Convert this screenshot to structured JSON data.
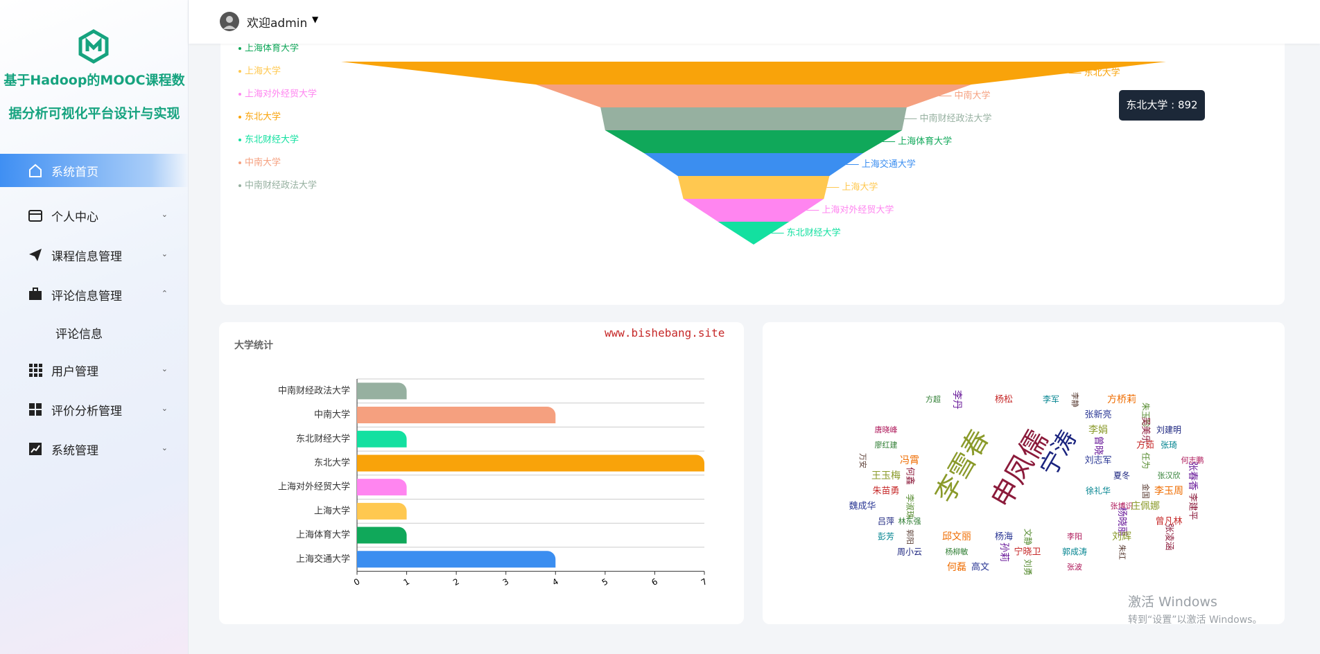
{
  "sidebar": {
    "title_lines": [
      "基于Hadoop的MOOC课程数",
      "据分析可视化平台设计与实现"
    ],
    "menu": [
      "系统首页",
      "个人中心",
      "课程信息管理",
      "评论信息管理",
      "用户管理",
      "评价分析管理",
      "系统管理"
    ],
    "submenu": "评论信息"
  },
  "header": {
    "welcome": "欢迎admin"
  },
  "watermark": "www.bishebang.site",
  "windows_notice": {
    "title": "激活 Windows",
    "subtitle": "转到“设置”以激活 Windows。"
  },
  "chart_data": [
    {
      "type": "funnel",
      "categories": [
        "上海交通大学",
        "上海体育大学",
        "上海大学",
        "上海对外经贸大学",
        "东北大学",
        "东北财经大学",
        "中南大学",
        "中南财经政法大学"
      ],
      "values": [
        237,
        321,
        164,
        152,
        892,
        77,
        471,
        331
      ],
      "colors": [
        "#3b8ef0",
        "#10a85a",
        "#ffc850",
        "#ff85f0",
        "#f9a30a",
        "#13e0a0",
        "#f5a07f",
        "#96b0a0"
      ],
      "tooltip": "东北大学 : 892"
    },
    {
      "type": "bar",
      "title": "大学统计",
      "categories": [
        "中南财经政法大学",
        "中南大学",
        "东北财经大学",
        "东北大学",
        "上海对外经贸大学",
        "上海大学",
        "上海体育大学",
        "上海交通大学"
      ],
      "values": [
        1,
        4,
        1,
        7,
        1,
        1,
        1,
        4
      ],
      "colors": [
        "#96b0a0",
        "#f5a07f",
        "#13e0a0",
        "#f9a30a",
        "#ff85f0",
        "#ffc850",
        "#10a85a",
        "#3b8ef0"
      ],
      "xlim": [
        0,
        7
      ],
      "xticks": [
        0,
        1,
        2,
        3,
        4,
        5,
        6,
        7
      ],
      "grid": true
    },
    {
      "type": "wordcloud",
      "words": [
        "李雪春",
        "申凤儒",
        "宁涛",
        "方超",
        "李丹",
        "杨松",
        "李军",
        "李静",
        "方桥莉",
        "张新亮",
        "朱玉珍",
        "唐晓峰",
        "李娟",
        "吴美乐",
        "刘建明",
        "廖红建",
        "曾晓",
        "方茹",
        "张琦",
        "万安",
        "冯霄",
        "刘志军",
        "任为",
        "何志鹏",
        "王玉梅",
        "何鑫",
        "夏冬",
        "张汉欣",
        "张春香",
        "朱苗勇",
        "徐礼华",
        "金国",
        "李玉周",
        "魏成华",
        "李淑珠",
        "张博识",
        "庄佩娜",
        "李建平",
        "吕萍",
        "林东强",
        "杨晓丽",
        "曾凡林",
        "彭芳",
        "郭阳",
        "邱文丽",
        "杨海",
        "文静",
        "李阳",
        "刘辉",
        "张凌涵",
        "周小云",
        "杨柳敏",
        "孙莉",
        "宁晓卫",
        "郭成涛",
        "朱红",
        "何磊",
        "高文",
        "刘勇",
        "张波"
      ],
      "colors": [
        "#8a9a2a",
        "#8b1a3a",
        "#1a237e",
        "#2e7d32",
        "#6a1b9a",
        "#c62828",
        "#00838f",
        "#5d4037",
        "#ef6c00",
        "#283593",
        "#558b2f",
        "#ad1457"
      ]
    }
  ]
}
